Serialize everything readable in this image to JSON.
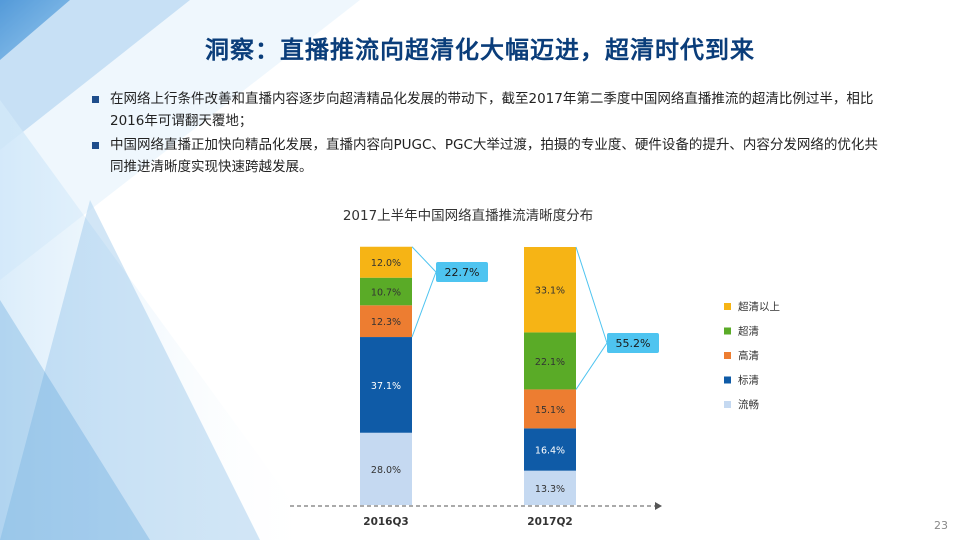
{
  "slide": {
    "title": "洞察：直播推流向超清化大幅迈进，超清时代到来",
    "bullets": [
      "在网络上行条件改善和直播内容逐步向超清精品化发展的带动下，截至2017年第二季度中国网络直播推流的超清比例过半，相比2016年可谓翻天覆地；",
      "中国网络直播正加快向精品化发展，直播内容向PUGC、PGC大举过渡，拍摄的专业度、硬件设备的提升、内容分发网络的优化共同推进清晰度实现快速跨越发展。"
    ],
    "page_number": "23"
  },
  "chart_data": {
    "type": "bar",
    "stacked": true,
    "percent": true,
    "title": "2017上半年中国网络直播推流清晰度分布",
    "categories": [
      "2016Q3",
      "2017Q2"
    ],
    "series": [
      {
        "name": "流畅",
        "values": [
          28.0,
          13.3
        ],
        "color": "#c5d9f1"
      },
      {
        "name": "标清",
        "values": [
          37.1,
          16.4
        ],
        "color": "#0f5ba7"
      },
      {
        "name": "高清",
        "values": [
          12.3,
          15.1
        ],
        "color": "#ed7d31"
      },
      {
        "name": "超清",
        "values": [
          10.7,
          22.1
        ],
        "color": "#5aab27"
      },
      {
        "name": "超清以上",
        "values": [
          12.0,
          33.1
        ],
        "color": "#f6b415"
      }
    ],
    "callouts": [
      {
        "category": "2016Q3",
        "label": "22.7%"
      },
      {
        "category": "2017Q2",
        "label": "55.2%"
      }
    ],
    "callout_color": "#4ec4f0",
    "legend_position": "right",
    "ylim": [
      0,
      100
    ]
  }
}
